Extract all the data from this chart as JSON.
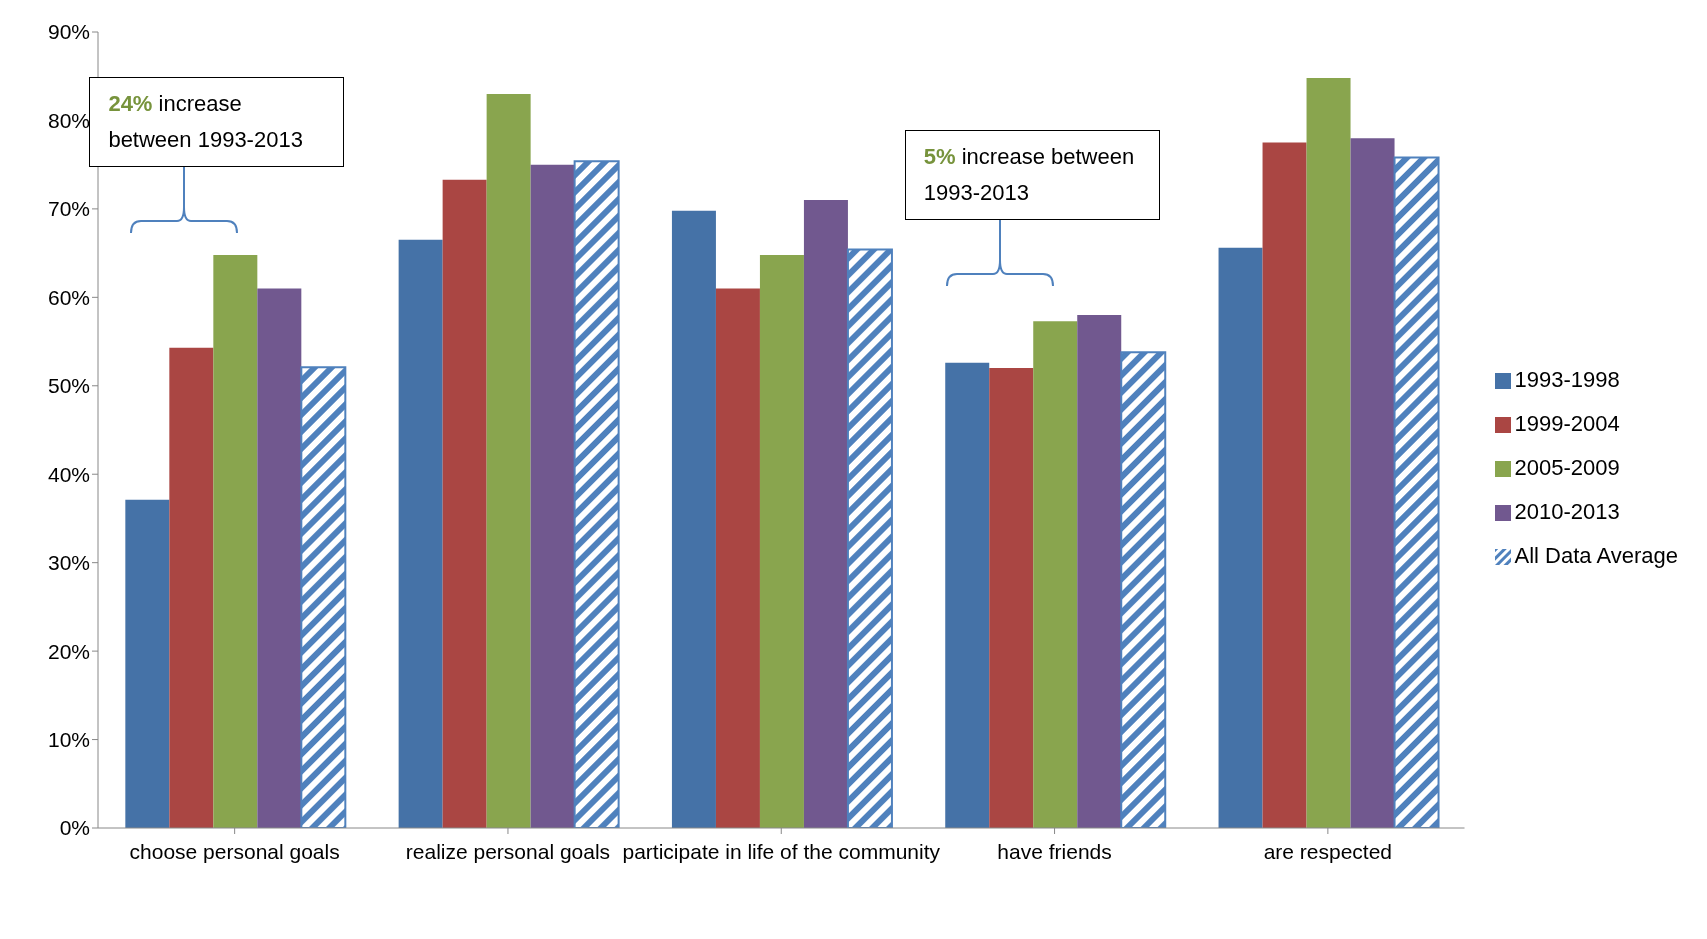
{
  "chart_data": {
    "type": "bar",
    "categories": [
      "choose personal goals",
      "realize personal goals",
      "participate in life of the community",
      "have friends",
      "are respected"
    ],
    "series": [
      {
        "name": "1993-1998",
        "color": "#4572a7",
        "values": [
          37.1,
          66.5,
          69.8,
          52.6,
          65.6
        ]
      },
      {
        "name": "1999-2004",
        "color": "#aa4643",
        "values": [
          54.3,
          73.3,
          61.0,
          52.0,
          77.5
        ]
      },
      {
        "name": "2005-2009",
        "color": "#89a54e",
        "values": [
          64.8,
          83.0,
          64.8,
          57.3,
          84.8
        ]
      },
      {
        "name": "2010-2013",
        "color": "#71588f",
        "values": [
          61.0,
          75.0,
          71.0,
          58.0,
          78.0
        ]
      },
      {
        "name": "All Data Average",
        "color": "#4f81bd",
        "values": [
          52.1,
          75.4,
          65.4,
          53.8,
          75.8
        ]
      }
    ],
    "ylim": [
      0,
      90
    ],
    "yticks": [
      {
        "value": 0,
        "label": "0%"
      },
      {
        "value": 10,
        "label": "10%"
      },
      {
        "value": 20,
        "label": "20%"
      },
      {
        "value": 30,
        "label": "30%"
      },
      {
        "value": 40,
        "label": "40%"
      },
      {
        "value": 50,
        "label": "50%"
      },
      {
        "value": 60,
        "label": "60%"
      },
      {
        "value": 70,
        "label": "70%"
      },
      {
        "value": 80,
        "label": "80%"
      },
      {
        "value": 90,
        "label": "90%"
      }
    ],
    "grid": false,
    "legend": "right",
    "annotations": [
      "24% increase between 1993-2013",
      "5% increase between 1993-2013"
    ]
  }
}
